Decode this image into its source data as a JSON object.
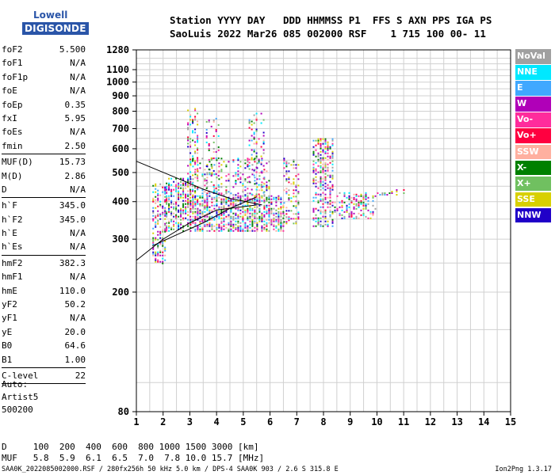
{
  "logo": {
    "line1": "Lowell",
    "line2": "DIGISONDE"
  },
  "header": {
    "line1": "Station YYYY DAY   DDD HHMMSS P1  FFS S AXN PPS IGA PS",
    "line2": "SaoLuis 2022 Mar26 085 002000 RSF    1 715 100 00- 11"
  },
  "params": [
    [
      {
        "label": "foF2",
        "value": "5.500"
      },
      {
        "label": "foF1",
        "value": "N/A"
      },
      {
        "label": "foF1p",
        "value": "N/A"
      },
      {
        "label": "foE",
        "value": "N/A"
      },
      {
        "label": "foEp",
        "value": "0.35"
      },
      {
        "label": "fxI",
        "value": "5.95"
      },
      {
        "label": "foEs",
        "value": "N/A"
      },
      {
        "label": "fmin",
        "value": "2.50"
      }
    ],
    [
      {
        "label": "MUF(D)",
        "value": "15.73"
      },
      {
        "label": "M(D)",
        "value": "2.86"
      },
      {
        "label": "D",
        "value": "N/A"
      }
    ],
    [
      {
        "label": "h`F",
        "value": "345.0"
      },
      {
        "label": "h`F2",
        "value": "345.0"
      },
      {
        "label": "h`E",
        "value": "N/A"
      },
      {
        "label": "h`Es",
        "value": "N/A"
      }
    ],
    [
      {
        "label": "hmF2",
        "value": "382.3"
      },
      {
        "label": "hmF1",
        "value": "N/A"
      },
      {
        "label": "hmE",
        "value": "110.0"
      },
      {
        "label": "yF2",
        "value": "50.2"
      },
      {
        "label": "yF1",
        "value": "N/A"
      },
      {
        "label": "yE",
        "value": "20.0"
      },
      {
        "label": "B0",
        "value": "64.6"
      },
      {
        "label": "B1",
        "value": "1.00"
      }
    ],
    [
      {
        "label": "C-level",
        "value": "22"
      }
    ]
  ],
  "auto": {
    "line1": "Auto:",
    "line2": "Artist5",
    "line3": "500200"
  },
  "bottom": {
    "d_row": "D     100  200  400  600  800 1000 1500 3000 [km]",
    "muf_row": "MUF   5.8  5.9  6.1  6.5  7.0  7.8 10.0 15.7 [MHz]"
  },
  "footer": {
    "left": "SAA0K_2022085002000.RSF / 280fx256h 50 kHz 5.0 km / DPS-4 SAA0K 903 / 2.6 S 315.8 E",
    "right": "Ion2Png 1.3.17"
  },
  "legend": [
    {
      "label": "NoVal",
      "color": "#a0a0a0"
    },
    {
      "label": "NNE",
      "color": "#00e8ff"
    },
    {
      "label": "E",
      "color": "#40a8ff"
    },
    {
      "label": "W",
      "color": "#b000b8"
    },
    {
      "label": "Vo-",
      "color": "#ff2c9c"
    },
    {
      "label": "Vo+",
      "color": "#ff0040"
    },
    {
      "label": "SSW",
      "color": "#ffb0a0"
    },
    {
      "label": "X-",
      "color": "#008000"
    },
    {
      "label": "X+",
      "color": "#70c060"
    },
    {
      "label": "SSE",
      "color": "#d8d000"
    },
    {
      "label": "NNW",
      "color": "#2000c8"
    }
  ],
  "chart_data": {
    "type": "scatter",
    "title": "",
    "xlabel": "",
    "ylabel": "",
    "xlim": [
      1,
      15
    ],
    "ylim": [
      80,
      1280
    ],
    "y_scale": "log",
    "x_ticks": [
      1,
      2,
      3,
      4,
      5,
      6,
      7,
      8,
      9,
      10,
      11,
      12,
      13,
      14,
      15
    ],
    "y_ticks": [
      80,
      200,
      300,
      400,
      500,
      600,
      700,
      800,
      900,
      1000,
      1100,
      1280
    ],
    "grid": true,
    "echo_regions": [
      {
        "x": [
          1.6,
          2.1
        ],
        "y": [
          250,
          460
        ],
        "density": 0.45
      },
      {
        "x": [
          2.1,
          3.0
        ],
        "y": [
          320,
          480
        ],
        "density": 0.5
      },
      {
        "x": [
          3.0,
          6.5
        ],
        "y": [
          320,
          420
        ],
        "density": 0.6
      },
      {
        "x": [
          3.0,
          6.0
        ],
        "y": [
          420,
          560
        ],
        "density": 0.22
      },
      {
        "x": [
          2.9,
          3.3
        ],
        "y": [
          400,
          820
        ],
        "density": 0.25
      },
      {
        "x": [
          3.6,
          4.1
        ],
        "y": [
          420,
          760
        ],
        "density": 0.18
      },
      {
        "x": [
          5.2,
          5.8
        ],
        "y": [
          420,
          800
        ],
        "density": 0.2
      },
      {
        "x": [
          6.5,
          7.1
        ],
        "y": [
          340,
          560
        ],
        "density": 0.3
      },
      {
        "x": [
          7.6,
          8.4
        ],
        "y": [
          330,
          650
        ],
        "density": 0.45
      },
      {
        "x": [
          8.4,
          10.0
        ],
        "y": [
          350,
          430
        ],
        "density": 0.35
      },
      {
        "x": [
          10.0,
          11.0
        ],
        "y": [
          420,
          440
        ],
        "density": 0.25
      }
    ],
    "trace_lines": [
      {
        "x": [
          1.0,
          2.5,
          3.5,
          4.5,
          5.7
        ],
        "y": [
          545,
          480,
          440,
          410,
          390
        ]
      },
      {
        "x": [
          1.0,
          2.0,
          3.0,
          4.0,
          5.5
        ],
        "y": [
          255,
          300,
          340,
          375,
          390
        ]
      },
      {
        "x": [
          1.6,
          2.5,
          3.5,
          4.5,
          5.5
        ],
        "y": [
          285,
          310,
          340,
          380,
          415
        ]
      }
    ]
  }
}
